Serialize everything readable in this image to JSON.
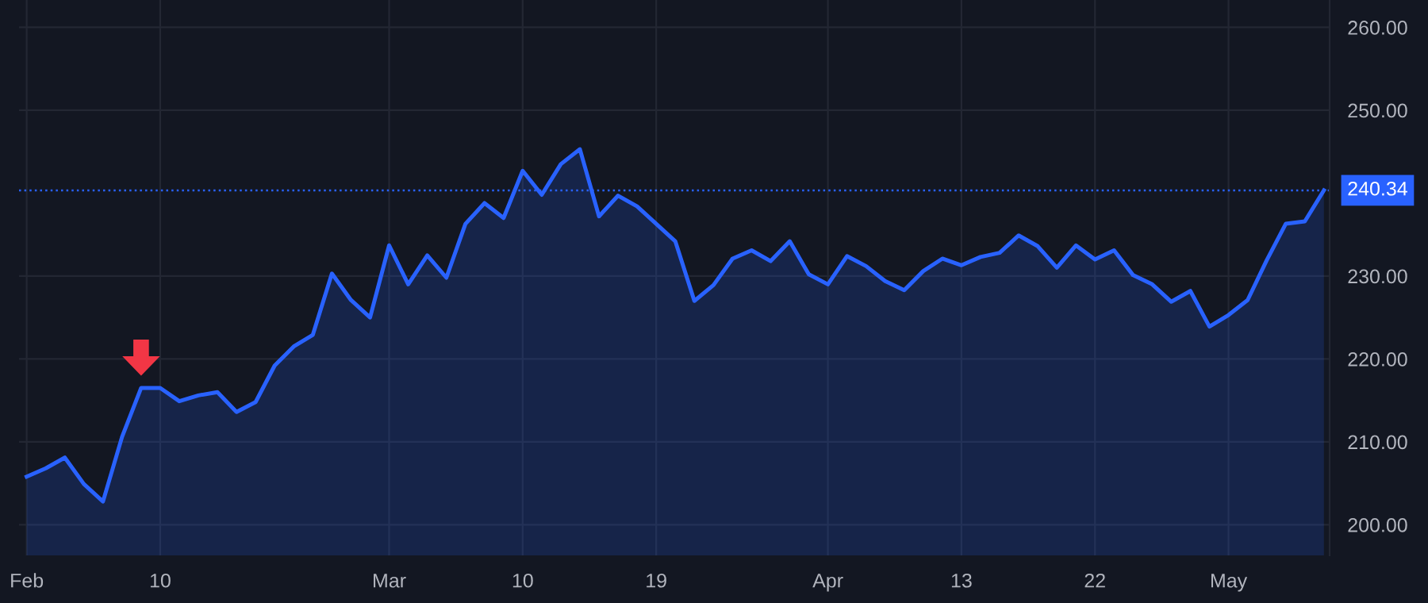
{
  "chart_data": {
    "type": "area",
    "categories": [
      "Feb",
      null,
      null,
      null,
      null,
      null,
      null,
      "10",
      null,
      null,
      null,
      null,
      null,
      null,
      null,
      null,
      null,
      null,
      null,
      "Mar",
      null,
      null,
      null,
      null,
      null,
      null,
      "10",
      null,
      null,
      null,
      null,
      null,
      null,
      "19",
      null,
      null,
      null,
      null,
      null,
      null,
      null,
      null,
      "Apr",
      null,
      null,
      null,
      null,
      null,
      null,
      "13",
      null,
      null,
      null,
      null,
      null,
      null,
      "22",
      null,
      null,
      null,
      null,
      null,
      null,
      "May",
      null,
      null,
      null,
      null,
      null
    ],
    "series": [
      {
        "color": "#2962ff",
        "values": [
          205.8,
          206.8,
          208.1,
          204.9,
          202.8,
          210.6,
          216.5,
          216.5,
          214.9,
          215.6,
          216.0,
          213.6,
          214.8,
          219.2,
          221.5,
          222.9,
          230.3,
          227.1,
          225.0,
          233.7,
          229.0,
          232.5,
          229.8,
          236.3,
          238.8,
          237.0,
          242.7,
          239.8,
          243.5,
          245.3,
          237.2,
          239.7,
          238.4,
          236.3,
          234.2,
          227.0,
          228.9,
          232.1,
          233.1,
          231.8,
          234.2,
          230.2,
          229.0,
          232.4,
          231.2,
          229.4,
          228.3,
          230.6,
          232.1,
          231.3,
          232.3,
          232.8,
          234.9,
          233.6,
          231.0,
          233.7,
          232.0,
          233.1,
          230.1,
          229.0,
          226.9,
          228.2,
          223.9,
          225.3,
          227.1,
          231.9,
          236.3,
          236.6,
          240.34
        ]
      }
    ],
    "ylim": [
      196.3,
      263.3
    ],
    "yticks": [
      {
        "value": 200,
        "label": "200.00"
      },
      {
        "value": 210,
        "label": "210.00"
      },
      {
        "value": 220,
        "label": "220.00"
      },
      {
        "value": 230,
        "label": "230.00"
      },
      {
        "value": 250,
        "label": "250.00"
      },
      {
        "value": 260,
        "label": "260.00"
      }
    ],
    "grid": true,
    "ref_lines": [
      {
        "axis": "y",
        "value": 240.34,
        "label": "240.34",
        "color": "#2962ff",
        "line_style": "dotted"
      }
    ]
  }
}
